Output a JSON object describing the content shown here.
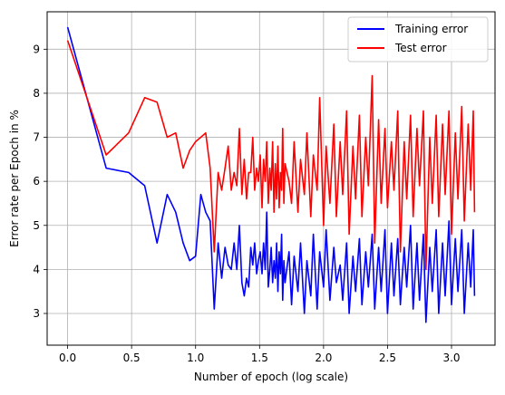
{
  "chart_data": {
    "type": "line",
    "title": "",
    "xlabel": "Number of epoch (log scale)",
    "ylabel": "Error rate per Epoch in %",
    "xlim": [
      -0.16,
      3.34
    ],
    "ylim": [
      2.28,
      9.85
    ],
    "xticks": [
      0.0,
      0.5,
      1.0,
      1.5,
      2.0,
      2.5,
      3.0
    ],
    "xtick_labels": [
      "0.0",
      "0.5",
      "1.0",
      "1.5",
      "2.0",
      "2.5",
      "3.0"
    ],
    "yticks": [
      3,
      4,
      5,
      6,
      7,
      8,
      9
    ],
    "ytick_labels": [
      "3",
      "4",
      "5",
      "6",
      "7",
      "8",
      "9"
    ],
    "grid": true,
    "legend_position": "top-right",
    "series": [
      {
        "name": "Training error",
        "color": "#0000ff",
        "x": [
          0.0,
          0.301,
          0.477,
          0.602,
          0.699,
          0.778,
          0.845,
          0.903,
          0.954,
          1.0,
          1.041,
          1.079,
          1.114,
          1.146,
          1.176,
          1.204,
          1.23,
          1.255,
          1.279,
          1.301,
          1.322,
          1.342,
          1.362,
          1.38,
          1.398,
          1.415,
          1.431,
          1.447,
          1.462,
          1.477,
          1.491,
          1.505,
          1.519,
          1.531,
          1.544,
          1.556,
          1.568,
          1.58,
          1.591,
          1.602,
          1.613,
          1.623,
          1.633,
          1.643,
          1.653,
          1.663,
          1.672,
          1.681,
          1.69,
          1.699,
          1.73,
          1.75,
          1.77,
          1.8,
          1.82,
          1.85,
          1.87,
          1.9,
          1.92,
          1.95,
          1.97,
          2.0,
          2.02,
          2.05,
          2.08,
          2.1,
          2.13,
          2.15,
          2.18,
          2.2,
          2.23,
          2.25,
          2.28,
          2.3,
          2.33,
          2.35,
          2.38,
          2.4,
          2.43,
          2.45,
          2.48,
          2.5,
          2.53,
          2.55,
          2.58,
          2.6,
          2.63,
          2.65,
          2.68,
          2.7,
          2.73,
          2.75,
          2.78,
          2.8,
          2.83,
          2.85,
          2.88,
          2.9,
          2.93,
          2.95,
          2.98,
          3.0,
          3.03,
          3.05,
          3.08,
          3.1,
          3.13,
          3.15,
          3.17,
          3.18
        ],
        "y": [
          9.5,
          6.3,
          6.2,
          5.9,
          4.6,
          5.7,
          5.3,
          4.6,
          4.2,
          4.3,
          5.7,
          5.3,
          5.1,
          3.1,
          4.6,
          3.8,
          4.5,
          4.1,
          4.0,
          4.6,
          4.0,
          5.0,
          3.7,
          3.4,
          3.8,
          3.6,
          4.5,
          4.1,
          4.6,
          3.9,
          4.2,
          4.4,
          3.9,
          4.6,
          4.0,
          5.3,
          3.6,
          4.0,
          4.5,
          3.7,
          4.2,
          3.8,
          4.6,
          3.5,
          4.4,
          3.9,
          4.8,
          3.3,
          4.2,
          3.7,
          4.4,
          3.2,
          4.3,
          3.5,
          4.6,
          3.0,
          4.2,
          3.4,
          4.8,
          3.1,
          4.4,
          3.6,
          4.9,
          3.3,
          4.5,
          3.7,
          4.1,
          3.3,
          4.6,
          3.0,
          4.3,
          3.5,
          4.7,
          3.2,
          4.4,
          3.6,
          4.8,
          3.1,
          4.5,
          3.5,
          4.9,
          3.0,
          4.6,
          3.4,
          4.7,
          3.2,
          4.5,
          3.6,
          5.0,
          3.1,
          4.6,
          3.3,
          4.8,
          2.8,
          4.5,
          3.5,
          4.9,
          3.0,
          4.6,
          3.4,
          5.1,
          3.2,
          4.7,
          3.5,
          4.9,
          3.0,
          4.6,
          3.6,
          4.9,
          3.4
        ]
      },
      {
        "name": "Test error",
        "color": "#ff0000",
        "x": [
          0.0,
          0.301,
          0.477,
          0.602,
          0.699,
          0.778,
          0.845,
          0.903,
          0.954,
          1.0,
          1.041,
          1.079,
          1.114,
          1.146,
          1.176,
          1.204,
          1.23,
          1.255,
          1.279,
          1.301,
          1.322,
          1.342,
          1.362,
          1.38,
          1.398,
          1.415,
          1.431,
          1.447,
          1.462,
          1.477,
          1.491,
          1.505,
          1.519,
          1.531,
          1.544,
          1.556,
          1.568,
          1.58,
          1.591,
          1.602,
          1.613,
          1.623,
          1.633,
          1.643,
          1.653,
          1.663,
          1.672,
          1.681,
          1.69,
          1.699,
          1.73,
          1.75,
          1.77,
          1.8,
          1.82,
          1.85,
          1.87,
          1.9,
          1.92,
          1.95,
          1.97,
          2.0,
          2.02,
          2.05,
          2.08,
          2.1,
          2.13,
          2.15,
          2.18,
          2.2,
          2.23,
          2.25,
          2.28,
          2.3,
          2.33,
          2.35,
          2.38,
          2.4,
          2.43,
          2.45,
          2.48,
          2.5,
          2.53,
          2.55,
          2.58,
          2.6,
          2.63,
          2.65,
          2.68,
          2.7,
          2.73,
          2.75,
          2.78,
          2.8,
          2.83,
          2.85,
          2.88,
          2.9,
          2.93,
          2.95,
          2.98,
          3.0,
          3.03,
          3.05,
          3.08,
          3.1,
          3.13,
          3.15,
          3.17,
          3.18
        ],
        "y": [
          9.2,
          6.6,
          7.1,
          7.9,
          7.8,
          7.0,
          7.1,
          6.3,
          6.7,
          6.9,
          7.0,
          7.1,
          6.3,
          4.4,
          6.2,
          5.8,
          6.3,
          6.8,
          5.8,
          6.2,
          5.9,
          7.2,
          5.7,
          6.5,
          5.6,
          6.2,
          6.2,
          7.0,
          5.8,
          6.3,
          6.0,
          6.6,
          5.4,
          6.5,
          6.0,
          6.9,
          5.5,
          6.3,
          5.8,
          6.9,
          5.3,
          6.4,
          5.6,
          6.8,
          5.4,
          6.2,
          5.8,
          7.2,
          5.5,
          6.4,
          6.0,
          5.5,
          6.9,
          5.3,
          6.5,
          5.7,
          7.1,
          5.2,
          6.6,
          5.8,
          7.9,
          5.0,
          6.8,
          5.5,
          7.3,
          5.2,
          6.9,
          5.7,
          7.6,
          4.8,
          6.8,
          5.6,
          7.5,
          5.2,
          7.0,
          5.9,
          8.4,
          4.6,
          7.4,
          5.5,
          7.2,
          5.4,
          6.9,
          5.8,
          7.6,
          4.4,
          6.9,
          5.6,
          7.5,
          5.2,
          7.2,
          5.9,
          7.6,
          4.0,
          7.0,
          5.5,
          7.5,
          5.2,
          7.3,
          5.7,
          7.6,
          4.8,
          7.1,
          5.6,
          7.7,
          5.1,
          7.3,
          5.8,
          7.6,
          5.3
        ]
      }
    ]
  }
}
